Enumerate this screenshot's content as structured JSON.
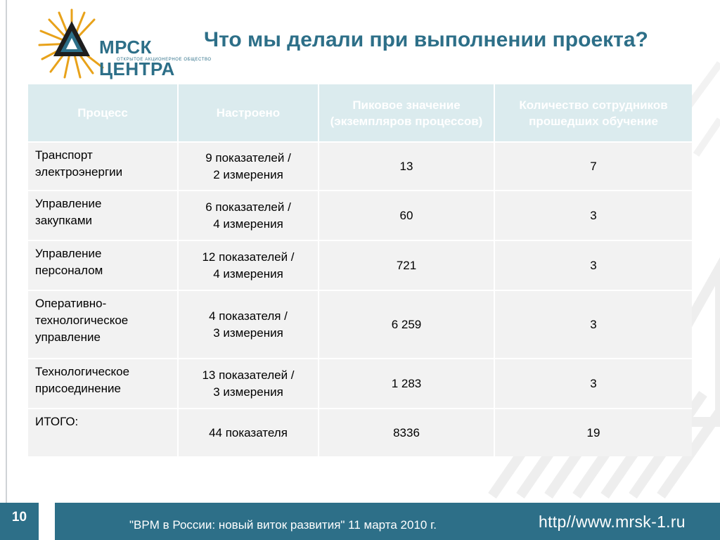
{
  "header": {
    "logo_name": "МРСК ЦЕНТРА",
    "logo_subtitle": "ОТКРЫТОЕ АКЦИОНЕРНОЕ ОБЩЕСТВО",
    "title": "Что мы делали  при выполнении проекта?"
  },
  "table": {
    "headers": [
      "Процесс",
      "Настроено",
      "Пиковое значение (экземпляров процессов)",
      "Количество сотрудников прошедших обучение"
    ],
    "rows": [
      {
        "process_lines": [
          "Транспорт",
          "электроэнергии"
        ],
        "configured_lines": [
          "9 показателей /",
          "2 измерения"
        ],
        "peak": "13",
        "trained": "7"
      },
      {
        "process_lines": [
          "Управление",
          "закупками"
        ],
        "configured_lines": [
          "6 показателей /",
          "4 измерения"
        ],
        "peak": "60",
        "trained": "3"
      },
      {
        "process_lines": [
          "Управление",
          "персоналом"
        ],
        "configured_lines": [
          "12 показателей /",
          "4 измерения"
        ],
        "peak": "721",
        "trained": "3"
      },
      {
        "process_lines": [
          "Оперативно-",
          "технологическое",
          "управление"
        ],
        "configured_lines": [
          "4 показателя /",
          "3 измерения"
        ],
        "peak": "6 259",
        "trained": "3"
      },
      {
        "process_lines": [
          "Технологическое",
          "присоединение"
        ],
        "configured_lines": [
          "13 показателей /",
          "3 измерения"
        ],
        "peak": "1 283",
        "trained": "3"
      },
      {
        "process_lines": [
          "ИТОГО:"
        ],
        "configured_lines": [
          "44 показателя"
        ],
        "peak": "8336",
        "trained": "19"
      }
    ]
  },
  "footer": {
    "page_number": "10",
    "event_text": "\"BPM в России: новый виток развития\" 11 марта 2010 г.",
    "url": "http//www.mrsk-1.ru"
  },
  "colors": {
    "brand_blue": "#2d6f88",
    "header_cell_bg": "#dbebee",
    "body_cell_bg": "#f2f2f2",
    "logo_gold": "#e8a21a"
  },
  "icons": [
    "mrsk-sunburst-logo-icon",
    "triangle-logo-icon"
  ]
}
